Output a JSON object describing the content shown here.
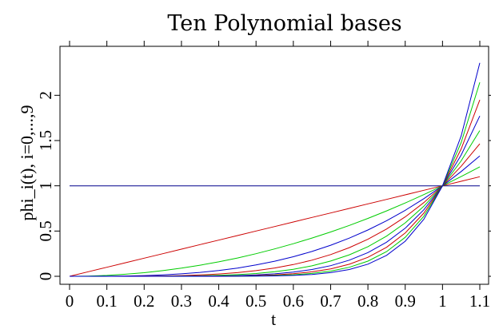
{
  "chart_data": {
    "type": "line",
    "title": "Ten Polynomial bases",
    "xlabel": "t",
    "ylabel": "phi_i(t), i=0,...,9",
    "xlim": [
      0,
      1.1
    ],
    "ylim": [
      0,
      2.4
    ],
    "x_ticks": [
      "0",
      "0.1",
      "0.2",
      "0.3",
      "0.4",
      "0.5",
      "0.6",
      "0.7",
      "0.8",
      "0.9",
      "1",
      "1.1"
    ],
    "x_tick_values": [
      0,
      0.1,
      0.2,
      0.3,
      0.4,
      0.5,
      0.6,
      0.7,
      0.8,
      0.9,
      1.0,
      1.1
    ],
    "y_ticks": [
      "0",
      "0.5",
      "1",
      "1.5",
      "2"
    ],
    "y_tick_values": [
      0,
      0.5,
      1,
      1.5,
      2
    ],
    "top_ticks": true,
    "right_ticks": true,
    "grid": false,
    "x": [
      0,
      0.05,
      0.1,
      0.15,
      0.2,
      0.25,
      0.3,
      0.35,
      0.4,
      0.45,
      0.5,
      0.55,
      0.6,
      0.65,
      0.7,
      0.75,
      0.8,
      0.85,
      0.9,
      0.95,
      1.0,
      1.05,
      1.1
    ],
    "series": [
      {
        "color": "#00008b",
        "values": [
          1,
          1,
          1,
          1,
          1,
          1,
          1,
          1,
          1,
          1,
          1,
          1,
          1,
          1,
          1,
          1,
          1,
          1,
          1,
          1,
          1,
          1,
          1
        ]
      },
      {
        "color": "#cc0000",
        "values": [
          0,
          0.05,
          0.1,
          0.15,
          0.2,
          0.25,
          0.3,
          0.35,
          0.4,
          0.45,
          0.5,
          0.55,
          0.6,
          0.65,
          0.7,
          0.75,
          0.8,
          0.85,
          0.9,
          0.95,
          1.0,
          1.05,
          1.1
        ]
      },
      {
        "color": "#00cc00",
        "values": [
          0,
          0.0025,
          0.01,
          0.0225,
          0.04,
          0.0625,
          0.09,
          0.1225,
          0.16,
          0.2025,
          0.25,
          0.3025,
          0.36,
          0.4225,
          0.49,
          0.5625,
          0.64,
          0.7225,
          0.81,
          0.9025,
          1.0,
          1.1025,
          1.21
        ]
      },
      {
        "color": "#0000cc",
        "values": [
          0,
          0.0001,
          0.001,
          0.0034,
          0.008,
          0.0156,
          0.027,
          0.0429,
          0.064,
          0.0911,
          0.125,
          0.1664,
          0.216,
          0.2746,
          0.343,
          0.4219,
          0.512,
          0.6141,
          0.729,
          0.8574,
          1.0,
          1.1576,
          1.331
        ]
      },
      {
        "color": "#cc0000",
        "values": [
          0,
          0,
          0.0001,
          0.0005,
          0.0016,
          0.0039,
          0.0081,
          0.015,
          0.0256,
          0.041,
          0.0625,
          0.0915,
          0.1296,
          0.1785,
          0.2401,
          0.3164,
          0.4096,
          0.522,
          0.6561,
          0.8145,
          1.0,
          1.2155,
          1.4641
        ]
      },
      {
        "color": "#00cc00",
        "values": [
          0,
          0,
          0,
          0.0001,
          0.0003,
          0.001,
          0.0024,
          0.0053,
          0.0102,
          0.0185,
          0.0313,
          0.0503,
          0.0778,
          0.116,
          0.1681,
          0.2373,
          0.3277,
          0.4437,
          0.5905,
          0.7738,
          1.0,
          1.2763,
          1.6105
        ]
      },
      {
        "color": "#0000cc",
        "values": [
          0,
          0,
          0,
          0,
          0.0001,
          0.0002,
          0.0007,
          0.0018,
          0.0041,
          0.0083,
          0.0156,
          0.0277,
          0.0467,
          0.0754,
          0.1176,
          0.178,
          0.2621,
          0.3771,
          0.5314,
          0.7351,
          1.0,
          1.3401,
          1.7716
        ]
      },
      {
        "color": "#cc0000",
        "values": [
          0,
          0,
          0,
          0,
          0,
          0.0001,
          0.0002,
          0.0006,
          0.0016,
          0.0037,
          0.0078,
          0.0152,
          0.028,
          0.049,
          0.0824,
          0.1335,
          0.2097,
          0.3206,
          0.4783,
          0.6983,
          1.0,
          1.4071,
          1.9487
        ]
      },
      {
        "color": "#00cc00",
        "values": [
          0,
          0,
          0,
          0,
          0,
          0,
          0.0001,
          0.0002,
          0.0007,
          0.0017,
          0.0039,
          0.0084,
          0.0168,
          0.0319,
          0.0576,
          0.1001,
          0.1678,
          0.2725,
          0.4305,
          0.6634,
          1.0,
          1.4775,
          2.1436
        ]
      },
      {
        "color": "#0000cc",
        "values": [
          0,
          0,
          0,
          0,
          0,
          0,
          0,
          0.0001,
          0.0003,
          0.0008,
          0.002,
          0.0046,
          0.0101,
          0.0207,
          0.0404,
          0.0751,
          0.1342,
          0.2316,
          0.3874,
          0.6302,
          1.0,
          1.5513,
          2.358
        ]
      }
    ]
  }
}
